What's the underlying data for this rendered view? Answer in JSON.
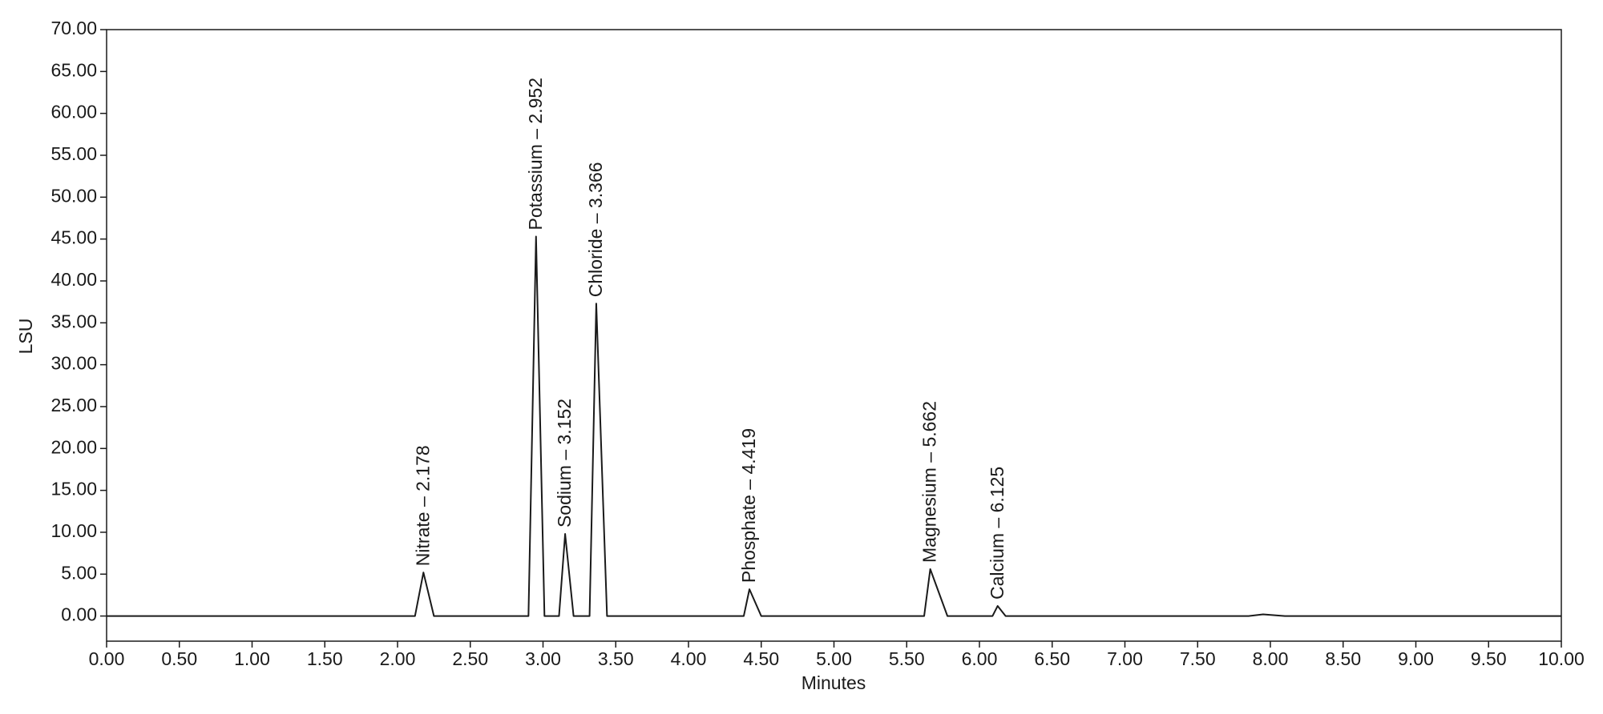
{
  "chart_data": {
    "type": "line",
    "xlabel": "Minutes",
    "ylabel": "LSU",
    "xlim": [
      0,
      10
    ],
    "ylim": [
      -3,
      70
    ],
    "xticks": [
      {
        "value": 0,
        "label": "0.00"
      },
      {
        "value": 0.5,
        "label": "0.50"
      },
      {
        "value": 1,
        "label": "1.00"
      },
      {
        "value": 1.5,
        "label": "1.50"
      },
      {
        "value": 2,
        "label": "2.00"
      },
      {
        "value": 2.5,
        "label": "2.50"
      },
      {
        "value": 3,
        "label": "3.00"
      },
      {
        "value": 3.5,
        "label": "3.50"
      },
      {
        "value": 4,
        "label": "4.00"
      },
      {
        "value": 4.5,
        "label": "4.50"
      },
      {
        "value": 5,
        "label": "5.00"
      },
      {
        "value": 5.5,
        "label": "5.50"
      },
      {
        "value": 6,
        "label": "6.00"
      },
      {
        "value": 6.5,
        "label": "6.50"
      },
      {
        "value": 7,
        "label": "7.00"
      },
      {
        "value": 7.5,
        "label": "7.50"
      },
      {
        "value": 8,
        "label": "8.00"
      },
      {
        "value": 8.5,
        "label": "8.50"
      },
      {
        "value": 9,
        "label": "9.00"
      },
      {
        "value": 9.5,
        "label": "9.50"
      },
      {
        "value": 10,
        "label": "10.00"
      }
    ],
    "yticks": [
      {
        "value": 0,
        "label": "0.00"
      },
      {
        "value": 5,
        "label": "5.00"
      },
      {
        "value": 10,
        "label": "10.00"
      },
      {
        "value": 15,
        "label": "15.00"
      },
      {
        "value": 20,
        "label": "20.00"
      },
      {
        "value": 25,
        "label": "25.00"
      },
      {
        "value": 30,
        "label": "30.00"
      },
      {
        "value": 35,
        "label": "35.00"
      },
      {
        "value": 40,
        "label": "40.00"
      },
      {
        "value": 45,
        "label": "45.00"
      },
      {
        "value": 50,
        "label": "50.00"
      },
      {
        "value": 55,
        "label": "55.00"
      },
      {
        "value": 60,
        "label": "60.00"
      },
      {
        "value": 65,
        "label": "65.00"
      },
      {
        "value": 70,
        "label": "70.00"
      }
    ],
    "x": [
      0,
      2.12,
      2.178,
      2.25,
      2.9,
      2.952,
      3.01,
      3.11,
      3.152,
      3.21,
      3.32,
      3.366,
      3.44,
      4.38,
      4.419,
      4.5,
      5.62,
      5.662,
      5.78,
      6.09,
      6.125,
      6.18,
      7.85,
      7.95,
      8.1,
      10
    ],
    "series": [
      {
        "color": "#1a1a1a",
        "values": [
          0,
          0,
          5.2,
          0,
          0,
          45.3,
          0,
          0,
          9.8,
          0,
          0,
          37.3,
          0,
          0,
          3.2,
          0,
          0,
          5.6,
          0,
          0,
          1.2,
          0,
          0,
          0.2,
          0,
          0
        ]
      }
    ],
    "annotations": [
      "Nitrate – 2.178",
      "Potassium – 2.952",
      "Sodium – 3.152",
      "Chloride – 3.366",
      "Phosphate – 4.419",
      "Magnesium – 5.662",
      "Calcium – 6.125"
    ]
  }
}
